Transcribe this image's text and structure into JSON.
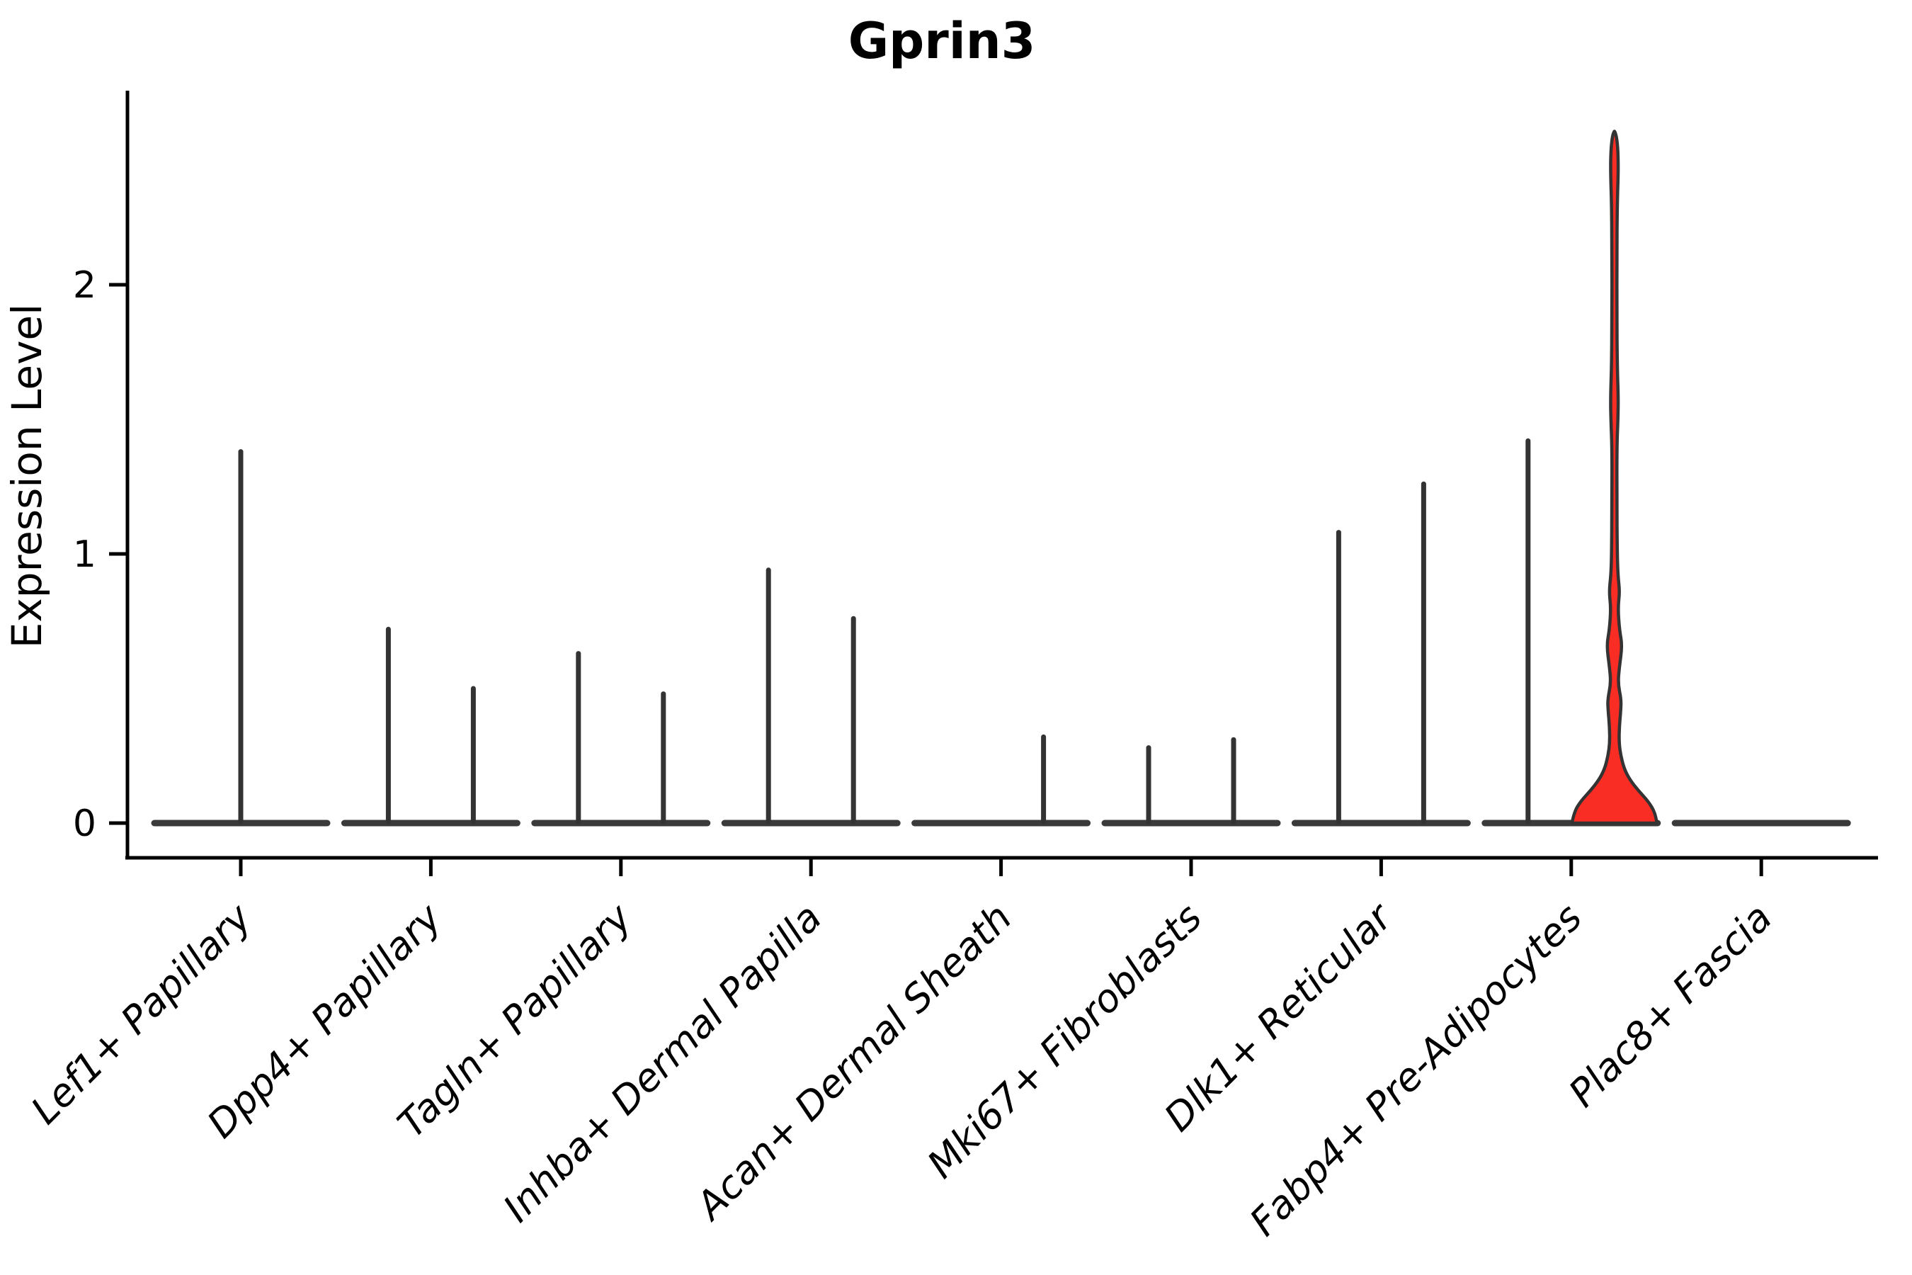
{
  "chart_data": {
    "type": "violin",
    "title": "Gprin3",
    "ylabel": "Expression Level",
    "xlabel": "",
    "yticks": [
      "0",
      "1",
      "2"
    ],
    "ytick_values": [
      0,
      1,
      2
    ],
    "ylim": [
      -0.13,
      2.72
    ],
    "grid": false,
    "legend_position": "none",
    "categories": [
      "Lef1+ Papillary",
      "Dpp4+ Papillary",
      "Tagln+ Papillary",
      "Inhba+ Dermal Papilla",
      "Acan+ Dermal Sheath",
      "Mki67+ Fibroblasts",
      "Dlk1+ Reticular",
      "Fabp4+ Pre-Adipocytes",
      "Plac8+ Fascia"
    ],
    "violins": [
      {
        "category": "Lef1+ Papillary",
        "spikes": [
          {
            "offset": 0,
            "max": 1.38
          }
        ]
      },
      {
        "category": "Dpp4+ Papillary",
        "spikes": [
          {
            "offset": -60,
            "max": 0.72
          },
          {
            "offset": 60,
            "max": 0.5
          }
        ]
      },
      {
        "category": "Tagln+ Papillary",
        "spikes": [
          {
            "offset": -60,
            "max": 0.63
          },
          {
            "offset": 60,
            "max": 0.48
          }
        ]
      },
      {
        "category": "Inhba+ Dermal Papilla",
        "spikes": [
          {
            "offset": -60,
            "max": 0.94
          },
          {
            "offset": 60,
            "max": 0.76
          }
        ]
      },
      {
        "category": "Acan+ Dermal Sheath",
        "spikes": [
          {
            "offset": 60,
            "max": 0.32
          }
        ]
      },
      {
        "category": "Mki67+ Fibroblasts",
        "spikes": [
          {
            "offset": -60,
            "max": 0.28
          },
          {
            "offset": 60,
            "max": 0.31
          }
        ]
      },
      {
        "category": "Dlk1+ Reticular",
        "spikes": [
          {
            "offset": -60,
            "max": 1.08
          },
          {
            "offset": 60,
            "max": 1.26
          }
        ]
      },
      {
        "category": "Fabp4+ Pre-Adipocytes",
        "spikes": [
          {
            "offset": -61,
            "max": 1.42
          }
        ],
        "highlight_violin": {
          "offset": 61,
          "max": 2.57,
          "profile": [
            [
              0.0,
              60
            ],
            [
              0.04,
              57
            ],
            [
              0.08,
              48
            ],
            [
              0.12,
              34
            ],
            [
              0.16,
              22
            ],
            [
              0.2,
              14
            ],
            [
              0.25,
              9
            ],
            [
              0.3,
              6.5
            ],
            [
              0.36,
              7
            ],
            [
              0.42,
              9
            ],
            [
              0.46,
              9.5
            ],
            [
              0.52,
              5
            ],
            [
              0.58,
              7
            ],
            [
              0.66,
              11
            ],
            [
              0.72,
              7
            ],
            [
              0.8,
              5
            ],
            [
              0.86,
              7.5
            ],
            [
              0.92,
              5
            ],
            [
              1.0,
              4
            ],
            [
              1.2,
              3.5
            ],
            [
              1.4,
              3.5
            ],
            [
              1.5,
              5
            ],
            [
              1.58,
              5.5
            ],
            [
              1.7,
              4
            ],
            [
              1.9,
              3.5
            ],
            [
              2.1,
              3.5
            ],
            [
              2.3,
              4
            ],
            [
              2.42,
              5.5
            ],
            [
              2.5,
              5
            ],
            [
              2.55,
              3
            ],
            [
              2.57,
              0.5
            ]
          ]
        }
      },
      {
        "category": "Plac8+ Fascia",
        "spikes": []
      }
    ],
    "colors": {
      "violin_stroke": "#333333",
      "baseline": "#3a3a3a",
      "axis": "#000000",
      "highlight_fill": "#fa2d25"
    }
  }
}
